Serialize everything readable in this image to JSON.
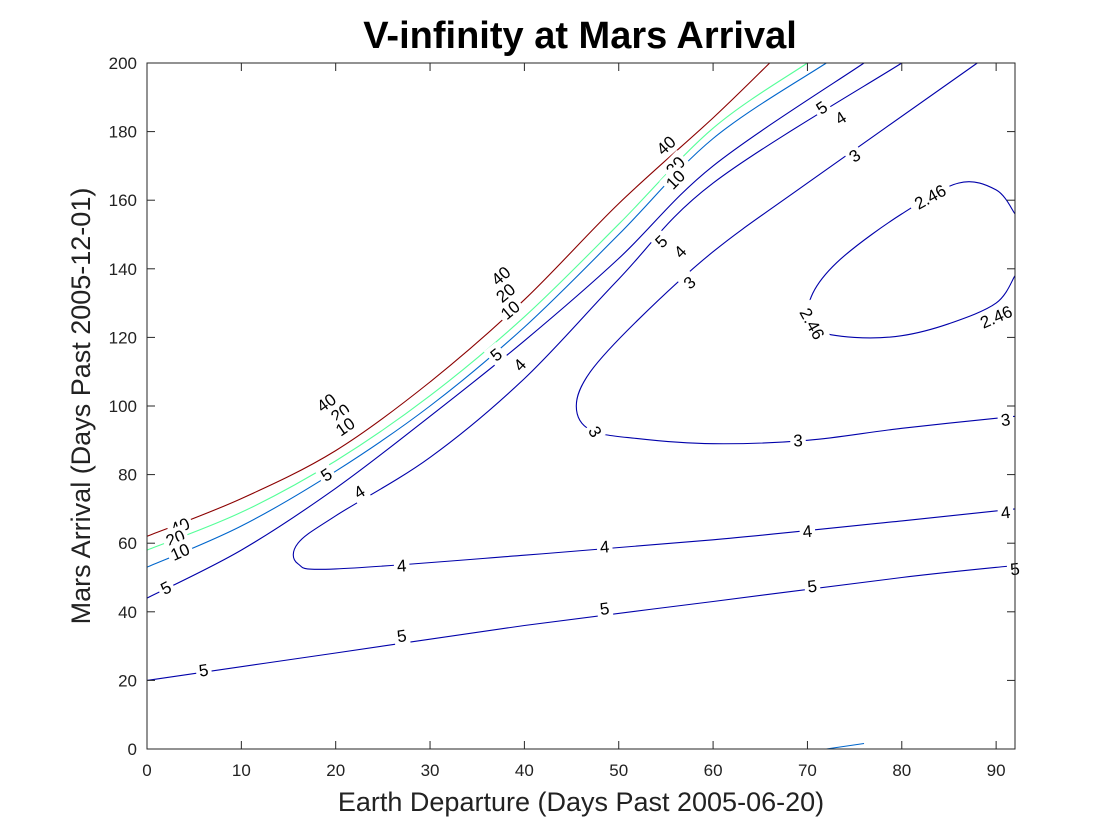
{
  "chart_data": {
    "type": "contour",
    "title": "V-infinity at Mars Arrival",
    "xlabel": "Earth Departure (Days Past 2005-06-20)",
    "ylabel": "Mars Arrival (Days Past 2005-12-01)",
    "xlim": [
      0,
      92
    ],
    "ylim": [
      0,
      200
    ],
    "xticks": [
      0,
      10,
      20,
      30,
      40,
      50,
      60,
      70,
      80,
      90
    ],
    "yticks": [
      0,
      20,
      40,
      60,
      80,
      100,
      120,
      140,
      160,
      180,
      200
    ],
    "grid": false,
    "levels": [
      {
        "level": 40,
        "color": "#8b0000",
        "lines": [
          [
            [
              0,
              62
            ],
            [
              10,
              73
            ],
            [
              20,
              87
            ],
            [
              30,
              107
            ],
            [
              40,
              131
            ],
            [
              50,
              159
            ],
            [
              60,
              184
            ],
            [
              66,
              200
            ]
          ]
        ],
        "labels": [
          {
            "text": "40",
            "x": 3.5,
            "y": 65
          },
          {
            "text": "40",
            "x": 19,
            "y": 101
          },
          {
            "text": "40",
            "x": 37.5,
            "y": 138
          },
          {
            "text": "40",
            "x": 55,
            "y": 176
          }
        ]
      },
      {
        "level": 20,
        "color": "#55ff99",
        "lines": [
          [
            [
              0,
              58
            ],
            [
              10,
              69
            ],
            [
              20,
              84
            ],
            [
              30,
              103
            ],
            [
              40,
              126
            ],
            [
              50,
              153
            ],
            [
              60,
              181
            ],
            [
              70,
              200
            ]
          ]
        ],
        "labels": [
          {
            "text": "20",
            "x": 3,
            "y": 61.5
          },
          {
            "text": "20",
            "x": 20.5,
            "y": 98
          },
          {
            "text": "20",
            "x": 38,
            "y": 133
          },
          {
            "text": "20",
            "x": 56,
            "y": 170
          }
        ]
      },
      {
        "level": 10,
        "color": "#0066cc",
        "lines": [
          [
            [
              0,
              53
            ],
            [
              10,
              65
            ],
            [
              20,
              81
            ],
            [
              30,
              100
            ],
            [
              40,
              123
            ],
            [
              50,
              150
            ],
            [
              60,
              178
            ],
            [
              72,
              200
            ]
          ]
        ],
        "labels": [
          {
            "text": "10",
            "x": 3.5,
            "y": 57.5
          },
          {
            "text": "10",
            "x": 21,
            "y": 94
          },
          {
            "text": "10",
            "x": 38.5,
            "y": 128
          },
          {
            "text": "10",
            "x": 56,
            "y": 166
          }
        ]
      },
      {
        "level": 5,
        "color": "#0000aa",
        "lines": [
          [
            [
              0,
              44
            ],
            [
              10,
              58
            ],
            [
              20,
              76
            ],
            [
              30,
              97
            ],
            [
              40,
              119
            ],
            [
              50,
              143
            ],
            [
              60,
              170
            ],
            [
              76,
              200
            ]
          ],
          [
            [
              0,
              20
            ],
            [
              20,
              28
            ],
            [
              40,
              36
            ],
            [
              60,
              43
            ],
            [
              80,
              50
            ],
            [
              92,
              53.5
            ]
          ]
        ],
        "labels": [
          {
            "text": "5",
            "x": 2,
            "y": 47
          },
          {
            "text": "5",
            "x": 19,
            "y": 80
          },
          {
            "text": "5",
            "x": 37,
            "y": 115
          },
          {
            "text": "5",
            "x": 54.5,
            "y": 148
          },
          {
            "text": "5",
            "x": 71.5,
            "y": 187
          },
          {
            "text": "5",
            "x": 6,
            "y": 23
          },
          {
            "text": "5",
            "x": 27,
            "y": 33
          },
          {
            "text": "5",
            "x": 48.5,
            "y": 41
          },
          {
            "text": "5",
            "x": 70.5,
            "y": 47.5
          },
          {
            "text": "5",
            "x": 92,
            "y": 52.5
          }
        ]
      },
      {
        "level": 4,
        "color": "#0000aa",
        "lines": [
          [
            [
              92,
              70
            ],
            [
              80,
              66.5
            ],
            [
              60,
              61
            ],
            [
              40,
              56.5
            ],
            [
              20,
              52.5
            ],
            [
              16,
              54
            ],
            [
              16,
              60
            ],
            [
              20,
              68
            ],
            [
              30,
              85
            ],
            [
              40,
              108
            ],
            [
              50,
              137
            ],
            [
              60,
              165
            ],
            [
              80,
              200
            ]
          ]
        ],
        "labels": [
          {
            "text": "4",
            "x": 22.5,
            "y": 75
          },
          {
            "text": "4",
            "x": 39.5,
            "y": 112
          },
          {
            "text": "4",
            "x": 56.5,
            "y": 145
          },
          {
            "text": "4",
            "x": 73.5,
            "y": 184
          },
          {
            "text": "4",
            "x": 27,
            "y": 53.5
          },
          {
            "text": "4",
            "x": 48.5,
            "y": 59
          },
          {
            "text": "4",
            "x": 70,
            "y": 63.5
          },
          {
            "text": "4",
            "x": 91,
            "y": 69
          }
        ]
      },
      {
        "level": 3,
        "color": "#0000aa",
        "lines": [
          [
            [
              92,
              97
            ],
            [
              80,
              93.5
            ],
            [
              70,
              90
            ],
            [
              60,
              89
            ],
            [
              52,
              90.5
            ],
            [
              47,
              93
            ],
            [
              45.5,
              100
            ],
            [
              47,
              110
            ],
            [
              52,
              125
            ],
            [
              60,
              145
            ],
            [
              70,
              165
            ],
            [
              88,
              200
            ]
          ]
        ],
        "labels": [
          {
            "text": "3",
            "x": 47.5,
            "y": 92.5
          },
          {
            "text": "3",
            "x": 69,
            "y": 90
          },
          {
            "text": "3",
            "x": 91,
            "y": 96
          },
          {
            "text": "3",
            "x": 57.5,
            "y": 136
          },
          {
            "text": "3",
            "x": 75,
            "y": 173
          }
        ]
      },
      {
        "level": 2.46,
        "color": "#0000aa",
        "lines": [
          [
            [
              92,
              138
            ],
            [
              90,
              130
            ],
            [
              85,
              124
            ],
            [
              80,
              120.5
            ],
            [
              75,
              120
            ],
            [
              71,
              122
            ],
            [
              70,
              127
            ],
            [
              71,
              135
            ],
            [
              74,
              144
            ],
            [
              80,
              156
            ],
            [
              86,
              165
            ],
            [
              90,
              163
            ],
            [
              92,
              156
            ]
          ]
        ],
        "labels": [
          {
            "text": "2.46",
            "x": 70.5,
            "y": 124
          },
          {
            "text": "2.46",
            "x": 90,
            "y": 126
          },
          {
            "text": "2.46",
            "x": 83,
            "y": 161
          }
        ]
      },
      {
        "level": 5,
        "color": "#0066cc",
        "lines": [
          [
            [
              72,
              0
            ],
            [
              76,
              1.6
            ]
          ]
        ],
        "labels": []
      }
    ]
  }
}
